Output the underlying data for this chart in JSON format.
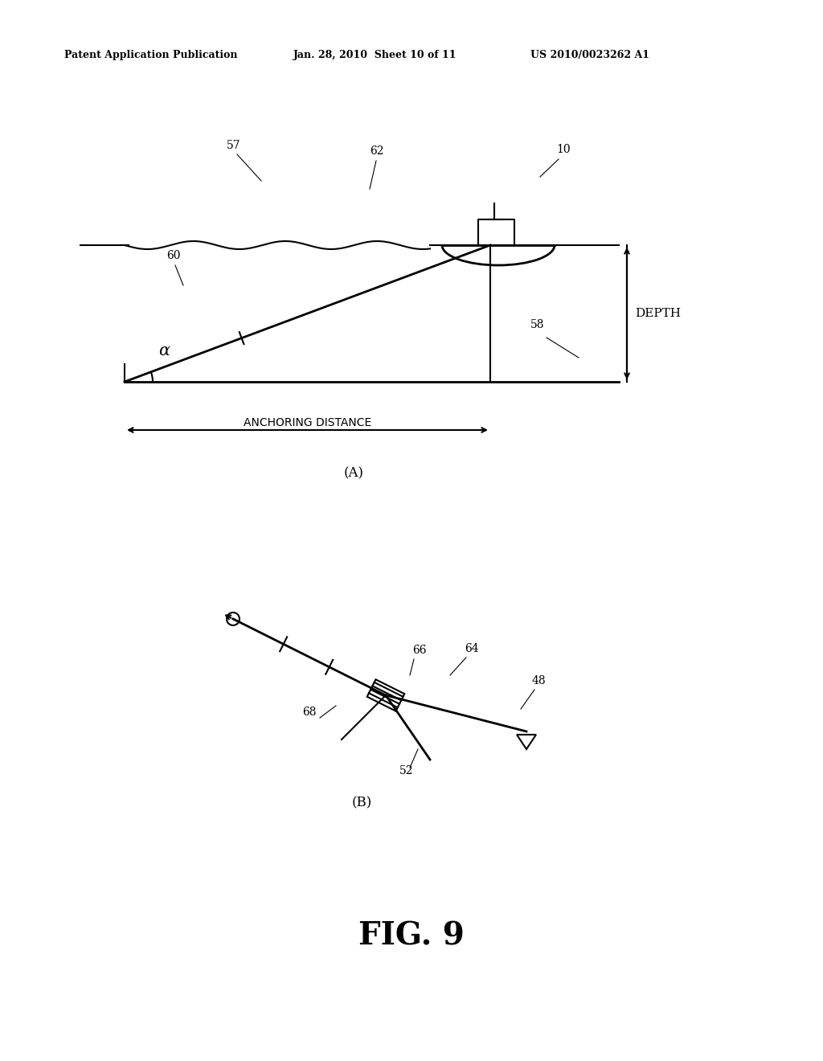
{
  "bg_color": "#ffffff",
  "header_left": "Patent Application Publication",
  "header_mid": "Jan. 28, 2010  Sheet 10 of 11",
  "header_right": "US 2010/0023262 A1",
  "fig_title": "FIG. 9",
  "label_A": "(A)",
  "label_B": "(B)",
  "anchoring_distance_label": "ANCHORING DISTANCE",
  "depth_label": "DEPTH",
  "alpha_label": "α"
}
